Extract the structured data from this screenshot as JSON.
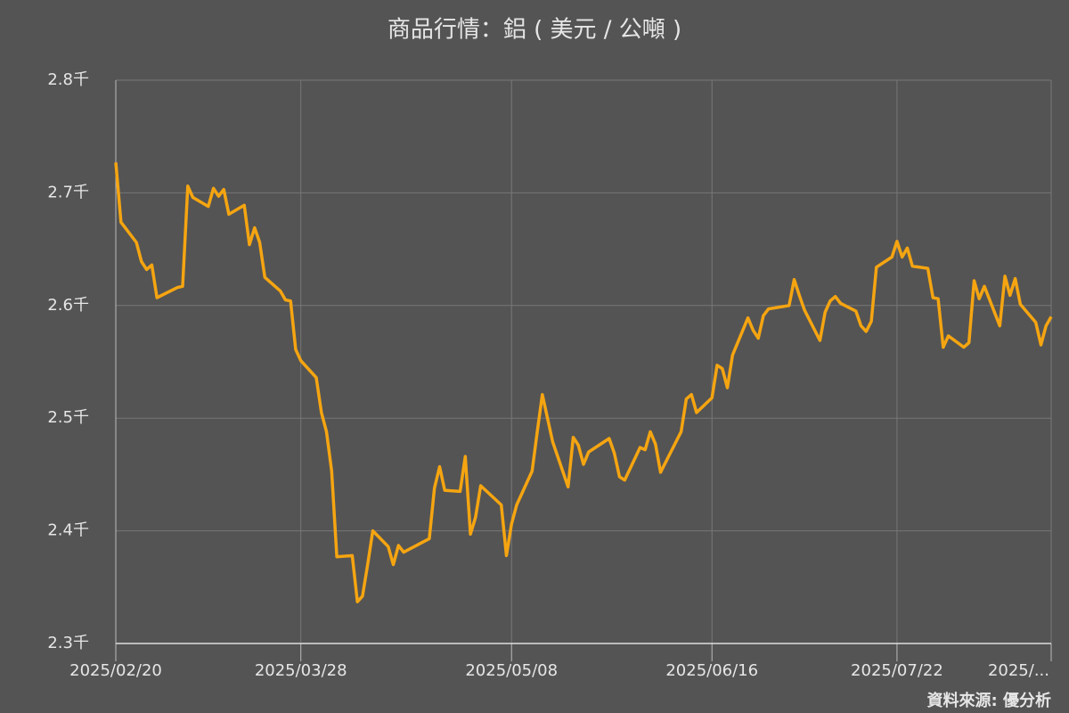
{
  "chart_data": {
    "type": "line",
    "title": "商品行情：鋁 ( 美元 / 公噸 )",
    "source": "資料來源: 優分析",
    "x": [
      "2025/02/20",
      "2025/02/21",
      "2025/02/24",
      "2025/02/25",
      "2025/02/26",
      "2025/02/27",
      "2025/02/28",
      "2025/03/04",
      "2025/03/05",
      "2025/03/06",
      "2025/03/07",
      "2025/03/10",
      "2025/03/11",
      "2025/03/12",
      "2025/03/13",
      "2025/03/14",
      "2025/03/17",
      "2025/03/18",
      "2025/03/19",
      "2025/03/20",
      "2025/03/21",
      "2025/03/24",
      "2025/03/25",
      "2025/03/26",
      "2025/03/27",
      "2025/03/28",
      "2025/03/31",
      "2025/04/01",
      "2025/04/02",
      "2025/04/03",
      "2025/04/04",
      "2025/04/07",
      "2025/04/08",
      "2025/04/09",
      "2025/04/10",
      "2025/04/11",
      "2025/04/14",
      "2025/04/15",
      "2025/04/16",
      "2025/04/17",
      "2025/04/22",
      "2025/04/23",
      "2025/04/24",
      "2025/04/25",
      "2025/04/28",
      "2025/04/29",
      "2025/04/30",
      "2025/05/01",
      "2025/05/02",
      "2025/05/06",
      "2025/05/07",
      "2025/05/08",
      "2025/05/09",
      "2025/05/12",
      "2025/05/13",
      "2025/05/14",
      "2025/05/16",
      "2025/05/19",
      "2025/05/20",
      "2025/05/21",
      "2025/05/22",
      "2025/05/23",
      "2025/05/27",
      "2025/05/28",
      "2025/05/29",
      "2025/05/30",
      "2025/06/02",
      "2025/06/03",
      "2025/06/04",
      "2025/06/05",
      "2025/06/06",
      "2025/06/10",
      "2025/06/11",
      "2025/06/12",
      "2025/06/13",
      "2025/06/16",
      "2025/06/17",
      "2025/06/18",
      "2025/06/19",
      "2025/06/20",
      "2025/06/23",
      "2025/06/24",
      "2025/06/25",
      "2025/06/26",
      "2025/06/27",
      "2025/07/01",
      "2025/07/02",
      "2025/07/03",
      "2025/07/04",
      "2025/07/07",
      "2025/07/08",
      "2025/07/09",
      "2025/07/10",
      "2025/07/11",
      "2025/07/14",
      "2025/07/15",
      "2025/07/16",
      "2025/07/17",
      "2025/07/18",
      "2025/07/21",
      "2025/07/22",
      "2025/07/23",
      "2025/07/24",
      "2025/07/25",
      "2025/07/28",
      "2025/07/29",
      "2025/07/30",
      "2025/07/31",
      "2025/08/01",
      "2025/08/04",
      "2025/08/05",
      "2025/08/06",
      "2025/08/07",
      "2025/08/08",
      "2025/08/11",
      "2025/08/12",
      "2025/08/13",
      "2025/08/14",
      "2025/08/15",
      "2025/08/18",
      "2025/08/19",
      "2025/08/20",
      "2025/08/21"
    ],
    "series": [
      {
        "name": "鋁",
        "color": "#f5a511",
        "values": [
          2.727,
          2.674,
          2.656,
          2.639,
          2.632,
          2.636,
          2.607,
          2.616,
          2.617,
          2.706,
          2.696,
          2.688,
          2.704,
          2.697,
          2.703,
          2.681,
          2.689,
          2.654,
          2.669,
          2.656,
          2.625,
          2.613,
          2.605,
          2.604,
          2.561,
          2.551,
          2.536,
          2.505,
          2.488,
          2.453,
          2.377,
          2.378,
          2.337,
          2.342,
          2.37,
          2.4,
          2.386,
          2.37,
          2.387,
          2.381,
          2.393,
          2.438,
          2.457,
          2.436,
          2.435,
          2.466,
          2.397,
          2.412,
          2.44,
          2.423,
          2.378,
          2.406,
          2.423,
          2.453,
          2.488,
          2.521,
          2.479,
          2.439,
          2.483,
          2.476,
          2.459,
          2.47,
          2.482,
          2.469,
          2.448,
          2.445,
          2.474,
          2.472,
          2.488,
          2.477,
          2.452,
          2.488,
          2.517,
          2.521,
          2.505,
          2.518,
          2.547,
          2.544,
          2.527,
          2.556,
          2.589,
          2.578,
          2.571,
          2.591,
          2.597,
          2.6,
          2.623,
          2.609,
          2.596,
          2.569,
          2.594,
          2.604,
          2.608,
          2.602,
          2.595,
          2.582,
          2.577,
          2.586,
          2.634,
          2.643,
          2.657,
          2.643,
          2.651,
          2.635,
          2.633,
          2.607,
          2.606,
          2.563,
          2.573,
          2.563,
          2.567,
          2.622,
          2.606,
          2.617,
          2.582,
          2.626,
          2.609,
          2.624,
          2.601,
          2.585,
          2.565,
          2.582,
          2.59
        ]
      }
    ],
    "xlim": [
      "2025/02/20",
      "2025/08/21"
    ],
    "xticks": [
      "2025/02/20",
      "2025/03/28",
      "2025/05/08",
      "2025/06/16",
      "2025/07/22",
      {
        "value": "2025/08/21",
        "label": "2025/..."
      }
    ],
    "ylim": [
      2.3,
      2.8
    ],
    "yticks": [
      {
        "value": 2.3,
        "label": "2.3千"
      },
      {
        "value": 2.4,
        "label": "2.4千"
      },
      {
        "value": 2.5,
        "label": "2.5千"
      },
      {
        "value": 2.6,
        "label": "2.6千"
      },
      {
        "value": 2.7,
        "label": "2.7千"
      },
      {
        "value": 2.8,
        "label": "2.8千"
      }
    ],
    "grid": true
  }
}
